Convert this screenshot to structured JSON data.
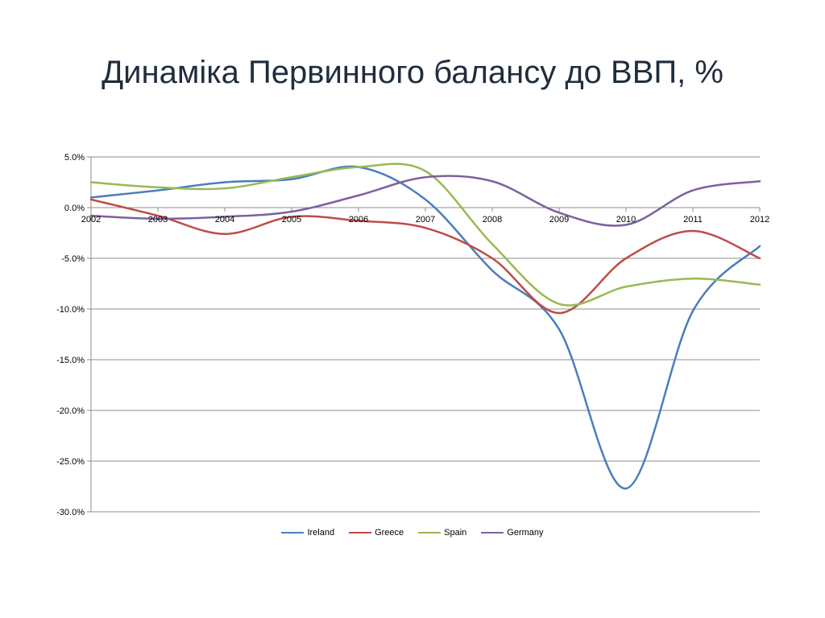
{
  "title": "Динаміка Первинного балансу до ВВП, %",
  "chart_data": {
    "type": "line",
    "x": [
      "2002",
      "2003",
      "2004",
      "2005",
      "2006",
      "2007",
      "2008",
      "2009",
      "2010",
      "2011",
      "2012"
    ],
    "ylim": [
      -30,
      5
    ],
    "y_ticks": [
      5,
      0,
      -5,
      -10,
      -15,
      -20,
      -25,
      -30
    ],
    "y_tick_labels": [
      "5.0%",
      "0.0%",
      "-5.0%",
      "-10.0%",
      "-15.0%",
      "-20.0%",
      "-25.0%",
      "-30.0%"
    ],
    "grid": true,
    "legend_position": "bottom",
    "series": [
      {
        "name": "Ireland",
        "color": "#4a7ebb",
        "values": [
          1.0,
          1.7,
          2.5,
          2.8,
          4.0,
          0.8,
          -6.2,
          -12.0,
          -27.7,
          -10.2,
          -3.8
        ]
      },
      {
        "name": "Greece",
        "color": "#be4b48",
        "values": [
          0.8,
          -0.8,
          -2.6,
          -0.9,
          -1.3,
          -2.0,
          -5.0,
          -10.4,
          -5.0,
          -2.3,
          -5.0
        ]
      },
      {
        "name": "Spain",
        "color": "#98b954",
        "values": [
          2.5,
          2.0,
          1.9,
          3.0,
          4.0,
          3.6,
          -3.6,
          -9.5,
          -7.8,
          -7.0,
          -7.6
        ]
      },
      {
        "name": "Germany",
        "color": "#7d60a0",
        "values": [
          -0.8,
          -1.1,
          -0.9,
          -0.4,
          1.2,
          3.0,
          2.6,
          -0.5,
          -1.7,
          1.7,
          2.6
        ]
      }
    ]
  }
}
